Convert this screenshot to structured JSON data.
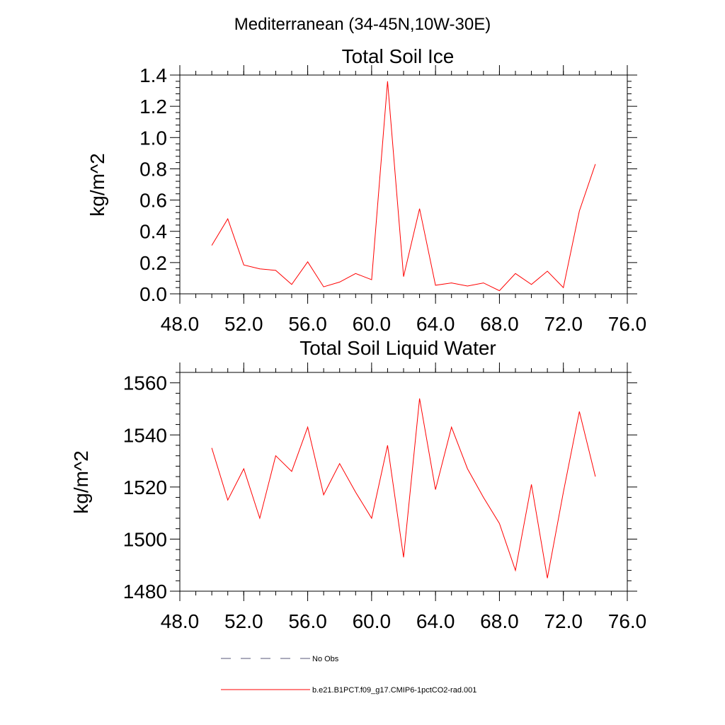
{
  "figure_title": "Mediterranean (34-45N,10W-30E)",
  "chart_data": [
    {
      "type": "line",
      "title": "Total Soil Ice",
      "xlabel": "",
      "ylabel": "kg/m^2",
      "xlim": [
        48,
        76
      ],
      "ylim": [
        0,
        1.4
      ],
      "xticks": [
        48,
        52,
        56,
        60,
        64,
        68,
        72,
        76
      ],
      "xtick_labels": [
        "48.0",
        "52.0",
        "56.0",
        "60.0",
        "64.0",
        "68.0",
        "72.0",
        "76.0"
      ],
      "yticks": [
        0,
        0.2,
        0.4,
        0.6,
        0.8,
        1.0,
        1.2,
        1.4
      ],
      "ytick_labels": [
        "0.0",
        "0.2",
        "0.4",
        "0.6",
        "0.8",
        "1.0",
        "1.2",
        "1.4"
      ],
      "x": [
        50,
        51,
        52,
        53,
        54,
        55,
        56,
        57,
        58,
        59,
        60,
        61,
        62,
        63,
        64,
        65,
        66,
        67,
        68,
        69,
        70,
        71,
        72,
        73,
        74
      ],
      "series": [
        {
          "name": "b.e21.B1PCT.f09_g17.CMIP6-1pctCO2-rad.001",
          "color": "#ff0000",
          "values": [
            0.31,
            0.48,
            0.185,
            0.16,
            0.15,
            0.06,
            0.205,
            0.045,
            0.075,
            0.13,
            0.09,
            1.36,
            0.11,
            0.545,
            0.055,
            0.07,
            0.05,
            0.07,
            0.02,
            0.13,
            0.06,
            0.145,
            0.04,
            0.53,
            0.83
          ]
        }
      ]
    },
    {
      "type": "line",
      "title": "Total Soil Liquid Water",
      "xlabel": "",
      "ylabel": "kg/m^2",
      "xlim": [
        48,
        76
      ],
      "ylim": [
        1480,
        1564
      ],
      "xticks": [
        48,
        52,
        56,
        60,
        64,
        68,
        72,
        76
      ],
      "xtick_labels": [
        "48.0",
        "52.0",
        "56.0",
        "60.0",
        "64.0",
        "68.0",
        "72.0",
        "76.0"
      ],
      "yticks": [
        1480,
        1500,
        1520,
        1540,
        1560
      ],
      "ytick_labels": [
        "1480",
        "1500",
        "1520",
        "1540",
        "1560"
      ],
      "x": [
        50,
        51,
        52,
        53,
        54,
        55,
        56,
        57,
        58,
        59,
        60,
        61,
        62,
        63,
        64,
        65,
        66,
        67,
        68,
        69,
        70,
        71,
        72,
        73,
        74
      ],
      "series": [
        {
          "name": "b.e21.B1PCT.f09_g17.CMIP6-1pctCO2-rad.001",
          "color": "#ff0000",
          "values": [
            1535,
            1515,
            1527,
            1508,
            1532,
            1526,
            1543,
            1517,
            1529,
            1518,
            1508,
            1536,
            1493,
            1554,
            1519,
            1543,
            1527,
            1516,
            1506,
            1488,
            1521,
            1485,
            1518,
            1549,
            1524
          ]
        }
      ]
    }
  ],
  "legend": {
    "placement": "bottom-center",
    "items": [
      {
        "label": "No Obs",
        "color": "#555577",
        "dash": true
      },
      {
        "label": "b.e21.B1PCT.f09_g17.CMIP6-1pctCO2-rad.001",
        "color": "#ff0000",
        "dash": false
      }
    ]
  }
}
